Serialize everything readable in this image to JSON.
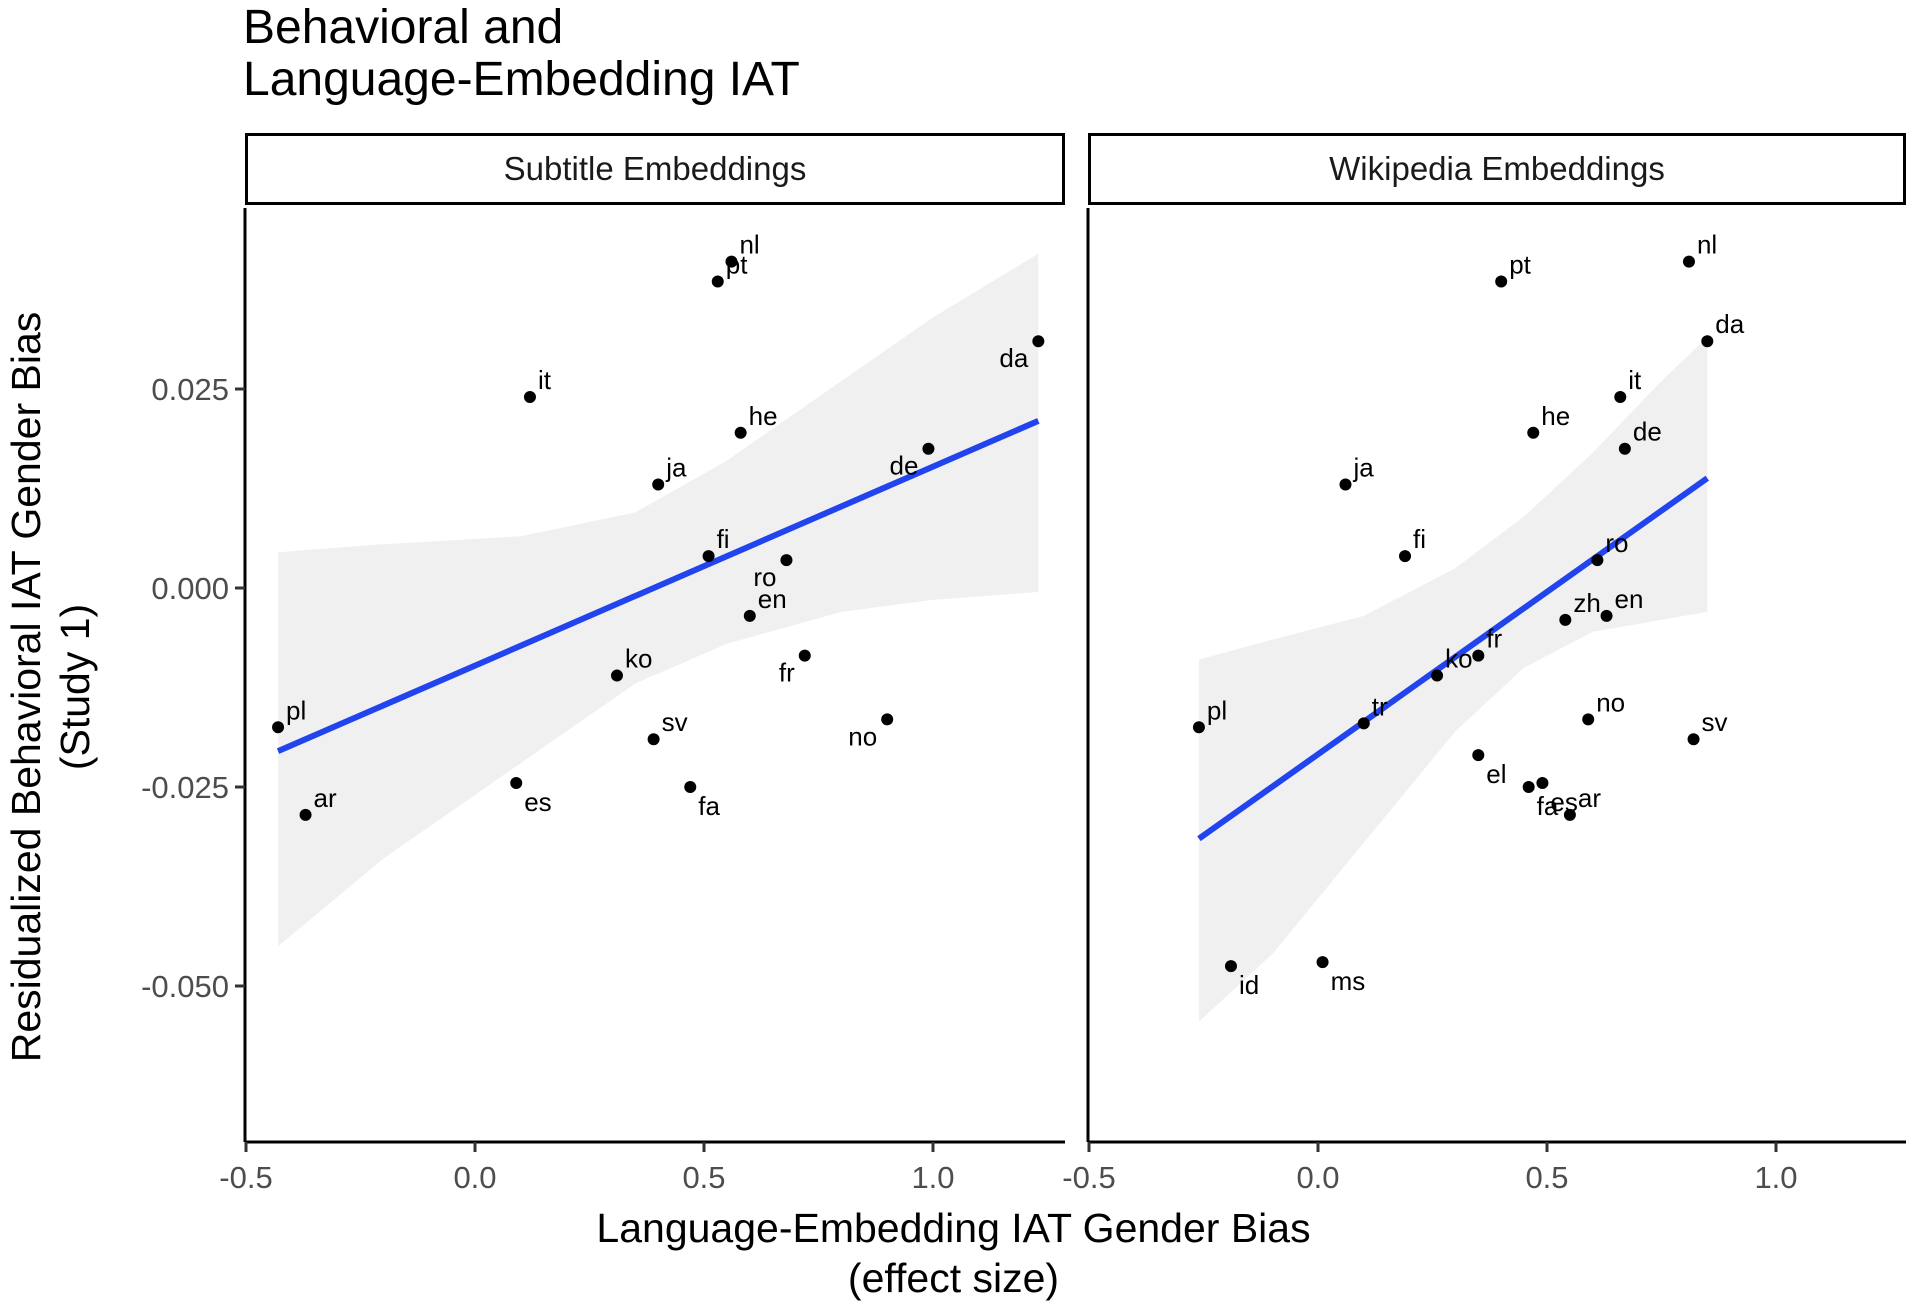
{
  "title": [
    "Behavioral and",
    "Language-Embedding IAT"
  ],
  "xlabel": [
    "Language-Embedding IAT Gender Bias",
    "(effect size)"
  ],
  "ylabel": [
    "Residualized Behavioral IAT Gender Bias",
    "(Study 1)"
  ],
  "colors": {
    "points": "#000000",
    "fit_line": "#2244ee",
    "ribbon": "#ebebeb"
  },
  "chart_data": [
    {
      "type": "scatter",
      "panel": "Subtitle Embeddings",
      "xlim": [
        -0.5,
        1.3
      ],
      "ylim": [
        -0.06,
        0.047
      ],
      "xticks": [
        -0.5,
        0.0,
        0.5,
        1.0
      ],
      "xtick_labels": [
        "-0.5",
        "0.0",
        "0.5",
        "1.0"
      ],
      "yticks": [
        0.025,
        0.0,
        -0.025,
        -0.05
      ],
      "ytick_labels": [
        "0.025",
        "0.000",
        "-0.025",
        "-0.050"
      ],
      "grid": false,
      "points": [
        {
          "label": "nl",
          "x": 0.56,
          "y": 0.041
        },
        {
          "label": "pt",
          "x": 0.53,
          "y": 0.0385
        },
        {
          "label": "da",
          "x": 1.23,
          "y": 0.031
        },
        {
          "label": "it",
          "x": 0.12,
          "y": 0.024
        },
        {
          "label": "he",
          "x": 0.58,
          "y": 0.0195
        },
        {
          "label": "de",
          "x": 0.99,
          "y": 0.0175
        },
        {
          "label": "ja",
          "x": 0.4,
          "y": 0.013
        },
        {
          "label": "fi",
          "x": 0.51,
          "y": 0.004
        },
        {
          "label": "ro",
          "x": 0.68,
          "y": 0.0035
        },
        {
          "label": "en",
          "x": 0.6,
          "y": -0.0035
        },
        {
          "label": "fr",
          "x": 0.72,
          "y": -0.0085
        },
        {
          "label": "ko",
          "x": 0.31,
          "y": -0.011
        },
        {
          "label": "no",
          "x": 0.9,
          "y": -0.0165
        },
        {
          "label": "pl",
          "x": -0.43,
          "y": -0.0175
        },
        {
          "label": "sv",
          "x": 0.39,
          "y": -0.019
        },
        {
          "label": "es",
          "x": 0.09,
          "y": -0.0245
        },
        {
          "label": "fa",
          "x": 0.47,
          "y": -0.025
        },
        {
          "label": "ar",
          "x": -0.37,
          "y": -0.0285
        }
      ],
      "fit": {
        "x": [
          -0.43,
          1.23
        ],
        "y": [
          -0.0205,
          0.021
        ]
      },
      "ribbon": {
        "x": [
          -0.43,
          -0.2,
          0.1,
          0.35,
          0.55,
          0.8,
          1.0,
          1.23
        ],
        "upper": [
          0.0045,
          0.0055,
          0.0065,
          0.0095,
          0.016,
          0.026,
          0.034,
          0.042
        ],
        "lower": [
          -0.045,
          -0.034,
          -0.022,
          -0.012,
          -0.007,
          -0.003,
          -0.0015,
          -0.0005
        ]
      }
    },
    {
      "type": "scatter",
      "panel": "Wikipedia Embeddings",
      "xlim": [
        -0.5,
        1.3
      ],
      "ylim": [
        -0.06,
        0.047
      ],
      "xticks": [
        -0.5,
        0.0,
        0.5,
        1.0
      ],
      "xtick_labels": [
        "-0.5",
        "0.0",
        "0.5",
        "1.0"
      ],
      "grid": false,
      "points": [
        {
          "label": "nl",
          "x": 0.81,
          "y": 0.041
        },
        {
          "label": "pt",
          "x": 0.4,
          "y": 0.0385
        },
        {
          "label": "da",
          "x": 0.85,
          "y": 0.031
        },
        {
          "label": "it",
          "x": 0.66,
          "y": 0.024
        },
        {
          "label": "he",
          "x": 0.47,
          "y": 0.0195
        },
        {
          "label": "de",
          "x": 0.67,
          "y": 0.0175
        },
        {
          "label": "ja",
          "x": 0.06,
          "y": 0.013
        },
        {
          "label": "fi",
          "x": 0.19,
          "y": 0.004
        },
        {
          "label": "ro",
          "x": 0.61,
          "y": 0.0035
        },
        {
          "label": "zh",
          "x": 0.54,
          "y": -0.004
        },
        {
          "label": "en",
          "x": 0.63,
          "y": -0.0035
        },
        {
          "label": "fr",
          "x": 0.35,
          "y": -0.0085
        },
        {
          "label": "ko",
          "x": 0.26,
          "y": -0.011
        },
        {
          "label": "pl",
          "x": -0.26,
          "y": -0.0175
        },
        {
          "label": "tr",
          "x": 0.1,
          "y": -0.017
        },
        {
          "label": "no",
          "x": 0.59,
          "y": -0.0165
        },
        {
          "label": "sv",
          "x": 0.82,
          "y": -0.019
        },
        {
          "label": "el",
          "x": 0.35,
          "y": -0.021
        },
        {
          "label": "es",
          "x": 0.49,
          "y": -0.0245
        },
        {
          "label": "fa",
          "x": 0.46,
          "y": -0.025
        },
        {
          "label": "ar",
          "x": 0.55,
          "y": -0.0285
        },
        {
          "label": "id",
          "x": -0.19,
          "y": -0.0475
        },
        {
          "label": "ms",
          "x": 0.01,
          "y": -0.047
        }
      ],
      "fit": {
        "x": [
          -0.26,
          0.85
        ],
        "y": [
          -0.0315,
          0.0138
        ]
      },
      "ribbon": {
        "x": [
          -0.26,
          -0.1,
          0.1,
          0.3,
          0.45,
          0.6,
          0.75,
          0.85
        ],
        "upper": [
          -0.009,
          -0.0065,
          -0.0035,
          0.0025,
          0.009,
          0.017,
          0.026,
          0.0315
        ],
        "lower": [
          -0.0545,
          -0.046,
          -0.032,
          -0.018,
          -0.01,
          -0.0055,
          -0.004,
          -0.003
        ]
      }
    }
  ]
}
